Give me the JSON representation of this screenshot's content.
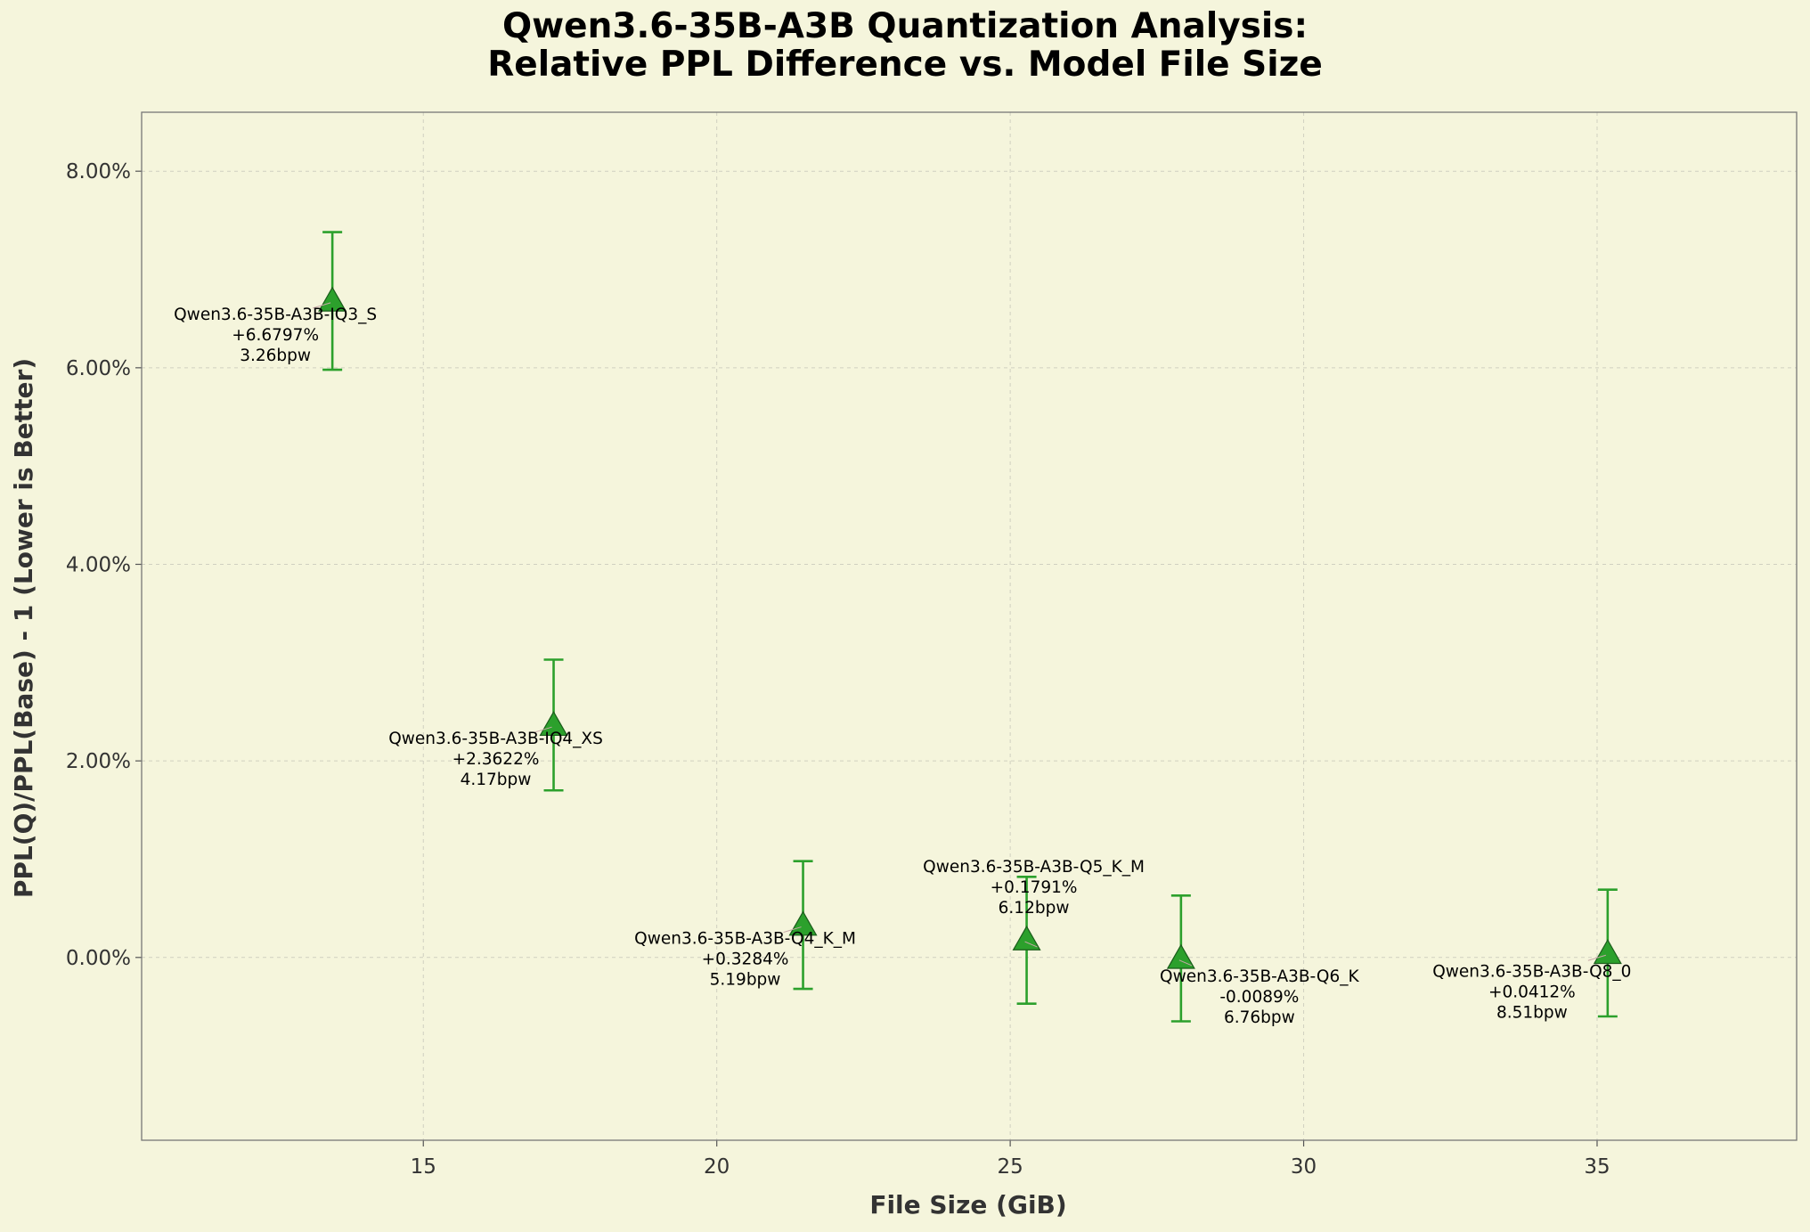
{
  "chart_data": {
    "type": "scatter",
    "title": "Qwen3.6-35B-A3B Quantization Analysis:",
    "subtitle": "Relative PPL Difference vs. Model File Size",
    "xlabel": "File Size (GiB)",
    "ylabel": "PPL(Q)/PPL(Base) - 1 (Lower is Better)",
    "xlim": [
      10.2,
      38.4
    ],
    "ylim": [
      -1.86,
      8.6
    ],
    "x_ticks": [
      15,
      20,
      25,
      30,
      35
    ],
    "y_ticks": [
      0,
      2,
      4,
      6,
      8
    ],
    "y_tick_labels": [
      "0.00%",
      "2.00%",
      "4.00%",
      "6.00%",
      "8.00%"
    ],
    "grid": true,
    "marker": "triangle",
    "colors": {
      "marker": "#2ca02c",
      "marker_edge": "#1a5c1a",
      "error_bar": "#2ca02c",
      "background": "#f5f5dc"
    },
    "points": [
      {
        "name": "Qwen3.6-35B-A3B-IQ3_S",
        "x": 13.45,
        "y": 6.6797,
        "err_low": 5.98,
        "err_high": 7.38,
        "value_label": "+6.6797%",
        "bpw_label": "3.26bpw"
      },
      {
        "name": "Qwen3.6-35B-A3B-IQ4_XS",
        "x": 17.22,
        "y": 2.3622,
        "err_low": 1.7,
        "err_high": 3.03,
        "value_label": "+2.3622%",
        "bpw_label": "4.17bpw"
      },
      {
        "name": "Qwen3.6-35B-A3B-Q4_K_M",
        "x": 21.47,
        "y": 0.3284,
        "err_low": -0.32,
        "err_high": 0.98,
        "value_label": "+0.3284%",
        "bpw_label": "5.19bpw"
      },
      {
        "name": "Qwen3.6-35B-A3B-Q5_K_M",
        "x": 25.28,
        "y": 0.1791,
        "err_low": -0.47,
        "err_high": 0.82,
        "value_label": "+0.1791%",
        "bpw_label": "6.12bpw"
      },
      {
        "name": "Qwen3.6-35B-A3B-Q6_K",
        "x": 27.91,
        "y": -0.0089,
        "err_low": -0.65,
        "err_high": 0.63,
        "value_label": "-0.0089%",
        "bpw_label": "6.76bpw"
      },
      {
        "name": "Qwen3.6-35B-A3B-Q8_0",
        "x": 35.18,
        "y": 0.0412,
        "err_low": -0.6,
        "err_high": 0.69,
        "value_label": "+0.0412%",
        "bpw_label": "8.51bpw"
      }
    ]
  }
}
